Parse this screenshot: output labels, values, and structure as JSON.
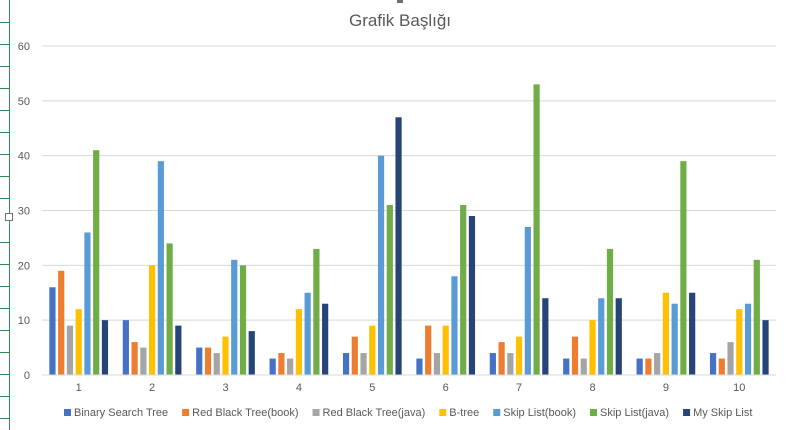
{
  "chart_data": {
    "type": "bar",
    "title": "Grafik Başlığı",
    "xlabel": "",
    "ylabel": "",
    "categories": [
      "1",
      "2",
      "3",
      "4",
      "5",
      "6",
      "7",
      "8",
      "9",
      "10"
    ],
    "ylim": [
      0,
      60
    ],
    "yticks": [
      "0",
      "10",
      "20",
      "30",
      "40",
      "50",
      "60"
    ],
    "grid": true,
    "legend_position": "bottom",
    "series": [
      {
        "name": "Binary Search Tree",
        "color": "#4472C4",
        "values": [
          16,
          10,
          5,
          3,
          4,
          3,
          4,
          3,
          3,
          4
        ]
      },
      {
        "name": "Red Black Tree(book)",
        "color": "#ED7D31",
        "values": [
          19,
          6,
          5,
          4,
          7,
          9,
          6,
          7,
          3,
          3
        ]
      },
      {
        "name": "Red Black Tree(java)",
        "color": "#A5A5A5",
        "values": [
          9,
          5,
          4,
          3,
          4,
          4,
          4,
          3,
          4,
          6
        ]
      },
      {
        "name": "B-tree",
        "color": "#FFC000",
        "values": [
          12,
          20,
          7,
          12,
          9,
          9,
          7,
          10,
          15,
          12
        ]
      },
      {
        "name": "Skip List(book)",
        "color": "#5B9BD5",
        "values": [
          26,
          39,
          21,
          15,
          40,
          18,
          27,
          14,
          13,
          13
        ]
      },
      {
        "name": "Skip List(java)",
        "color": "#70AD47",
        "values": [
          41,
          24,
          20,
          23,
          31,
          31,
          53,
          23,
          39,
          21
        ]
      },
      {
        "name": "My Skip List",
        "color": "#264478",
        "values": [
          10,
          9,
          8,
          13,
          47,
          29,
          14,
          14,
          15,
          10
        ]
      }
    ]
  }
}
